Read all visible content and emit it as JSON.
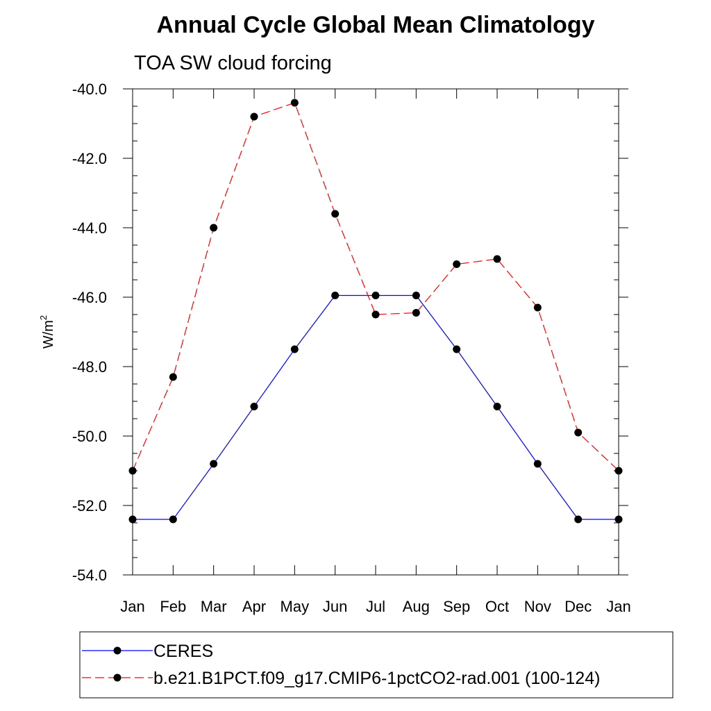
{
  "chart_data": {
    "type": "line",
    "title": "Annual Cycle Global Mean Climatology",
    "subtitle": "TOA SW cloud forcing",
    "ylabel": "W/m",
    "ylabel_sup": "2",
    "xlabel": "",
    "categories": [
      "Jan",
      "Feb",
      "Mar",
      "Apr",
      "May",
      "Jun",
      "Jul",
      "Aug",
      "Sep",
      "Oct",
      "Nov",
      "Dec",
      "Jan"
    ],
    "ylim": [
      -54.0,
      -40.0
    ],
    "y_ticks": [
      -40.0,
      -42.0,
      -44.0,
      -46.0,
      -48.0,
      -50.0,
      -52.0,
      -54.0
    ],
    "y_tick_labels": [
      "-40.0",
      "-42.0",
      "-44.0",
      "-46.0",
      "-48.0",
      "-50.0",
      "-52.0",
      "-54.0"
    ],
    "grid": false,
    "legend_position": "bottom",
    "series": [
      {
        "name": "CERES",
        "color": "#0000ff",
        "dash": "solid",
        "values": [
          -52.4,
          -52.4,
          -50.8,
          -49.15,
          -47.5,
          -45.95,
          -45.95,
          -45.95,
          -47.5,
          -49.15,
          -50.8,
          -52.4,
          -52.4
        ]
      },
      {
        "name": "b.e21.B1PCT.f09_g17.CMIP6-1pctCO2-rad.001 (100-124)",
        "color": "#ff0000",
        "dash": "dashed",
        "values": [
          -51.0,
          -48.3,
          -44.0,
          -40.8,
          -40.4,
          -43.6,
          -46.5,
          -46.45,
          -45.05,
          -44.9,
          -46.3,
          -49.9,
          -51.0
        ]
      }
    ]
  }
}
